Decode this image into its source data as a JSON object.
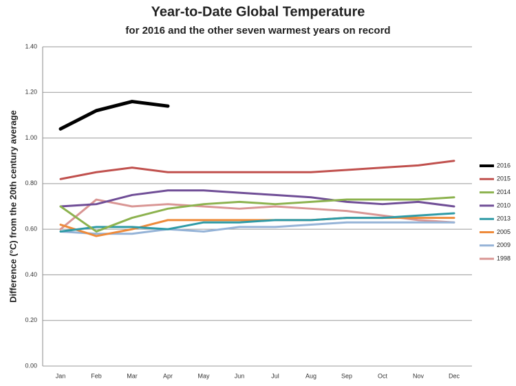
{
  "chart_data": {
    "type": "line",
    "title": "Year-to-Date Global Temperature",
    "subtitle": "for 2016 and the other seven warmest years on record",
    "y_label": "Difference (°C) from the 20th century average",
    "categories": [
      "Jan",
      "Feb",
      "Mar",
      "Apr",
      "May",
      "Jun",
      "Jul",
      "Aug",
      "Sep",
      "Oct",
      "Nov",
      "Dec"
    ],
    "series": [
      {
        "name": "2016",
        "color": "#000000",
        "values": [
          1.04,
          1.12,
          1.16,
          1.14,
          null,
          null,
          null,
          null,
          null,
          null,
          null,
          null
        ]
      },
      {
        "name": "2015",
        "color": "#c0504d",
        "values": [
          0.82,
          0.85,
          0.87,
          0.85,
          0.85,
          0.85,
          0.85,
          0.85,
          0.86,
          0.87,
          0.88,
          0.9
        ]
      },
      {
        "name": "2014",
        "color": "#8cb24e",
        "values": [
          0.7,
          0.59,
          0.65,
          0.69,
          0.71,
          0.72,
          0.71,
          0.72,
          0.73,
          0.73,
          0.73,
          0.74
        ]
      },
      {
        "name": "2010",
        "color": "#6f4d96",
        "values": [
          0.7,
          0.71,
          0.75,
          0.77,
          0.77,
          0.76,
          0.75,
          0.74,
          0.72,
          0.71,
          0.72,
          0.7
        ]
      },
      {
        "name": "2013",
        "color": "#2e9aa6",
        "values": [
          0.59,
          0.61,
          0.61,
          0.6,
          0.63,
          0.63,
          0.64,
          0.64,
          0.65,
          0.65,
          0.66,
          0.67
        ]
      },
      {
        "name": "2005",
        "color": "#ee8a3a",
        "values": [
          0.62,
          0.57,
          0.6,
          0.64,
          0.64,
          0.64,
          0.64,
          0.64,
          0.65,
          0.65,
          0.65,
          0.65
        ]
      },
      {
        "name": "2009",
        "color": "#95b3d7",
        "values": [
          0.59,
          0.58,
          0.58,
          0.6,
          0.59,
          0.61,
          0.61,
          0.62,
          0.63,
          0.63,
          0.63,
          0.63
        ]
      },
      {
        "name": "1998",
        "color": "#d99694",
        "values": [
          0.6,
          0.73,
          0.7,
          0.71,
          0.7,
          0.69,
          0.7,
          0.69,
          0.68,
          0.66,
          0.64,
          0.63
        ]
      }
    ],
    "ylim": [
      0,
      1.4
    ],
    "yticks": [
      {
        "value": 0,
        "label": "0.00"
      },
      {
        "value": 0.2,
        "label": "0.20"
      },
      {
        "value": 0.4,
        "label": "0.40"
      },
      {
        "value": 0.6,
        "label": "0.60"
      },
      {
        "value": 0.8,
        "label": "0.80"
      },
      {
        "value": 1.0,
        "label": "1.00"
      },
      {
        "value": 1.2,
        "label": "1.20"
      },
      {
        "value": 1.4,
        "label": "1.40"
      }
    ],
    "grid": true,
    "legend": "right"
  }
}
